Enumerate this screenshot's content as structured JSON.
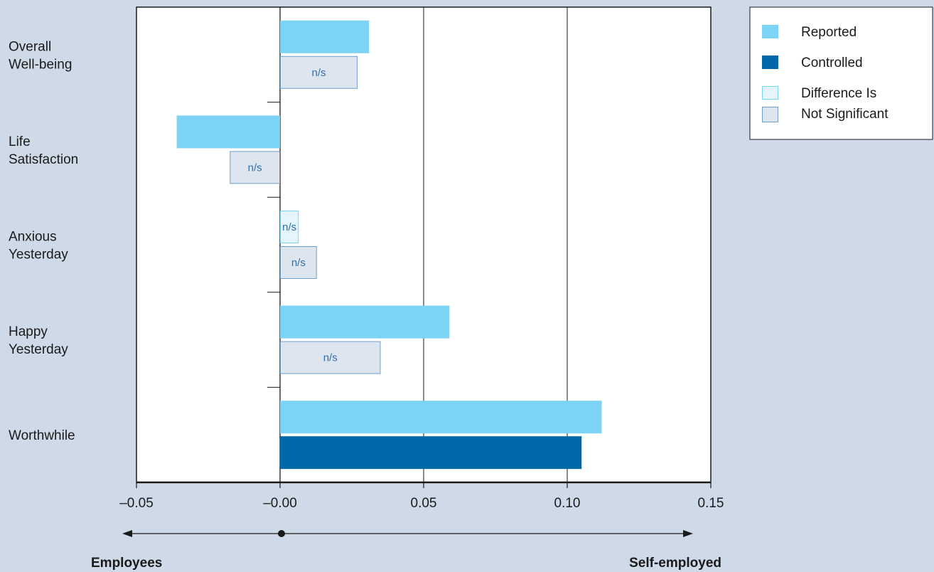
{
  "chart_data": {
    "type": "bar",
    "orientation": "horizontal",
    "categories": [
      [
        "Overall",
        "Well-being"
      ],
      [
        "Life",
        "Satisfaction"
      ],
      [
        "Anxious",
        "Yesterday"
      ],
      [
        "Happy",
        "Yesterday"
      ],
      [
        "Worthwhile"
      ]
    ],
    "series": [
      {
        "name": "Reported",
        "values": [
          0.031,
          -0.036,
          0.0065,
          0.059,
          0.112
        ],
        "not_significant": [
          false,
          false,
          true,
          false,
          false
        ]
      },
      {
        "name": "Controlled",
        "values": [
          0.027,
          -0.0175,
          0.0128,
          0.035,
          0.105
        ],
        "not_significant": [
          true,
          true,
          true,
          true,
          false
        ]
      }
    ],
    "ns_label": "n/s",
    "xlim": [
      -0.05,
      0.15
    ],
    "xticks": [
      -0.05,
      0.0,
      0.05,
      0.1,
      0.15
    ],
    "xtick_labels": [
      "–0.05",
      "–0.00",
      "0.05",
      "0.10",
      "0.15"
    ],
    "gridlines_at": [
      0.0,
      0.05,
      0.1
    ],
    "legend": {
      "placement": "top-right",
      "items": [
        {
          "label": "Reported",
          "style": "reported"
        },
        {
          "label": "Controlled",
          "style": "controlled"
        },
        {
          "label": "Difference Is",
          "style": "ns-reported"
        },
        {
          "label": "Not Significant",
          "style": "ns-controlled"
        }
      ]
    },
    "direction": {
      "left_label": "Employees",
      "right_label": "Self-employed"
    },
    "colors": {
      "background": "#cfdae8",
      "reported": "#7dd3f5",
      "controlled": "#0068a8",
      "ns_reported_fill": "#e4f5fd",
      "ns_reported_stroke": "#7dd3f5",
      "ns_controlled_fill": "#dde5ef",
      "ns_controlled_stroke": "#6f9fc9",
      "ns_text": "#2f6fa8"
    }
  }
}
